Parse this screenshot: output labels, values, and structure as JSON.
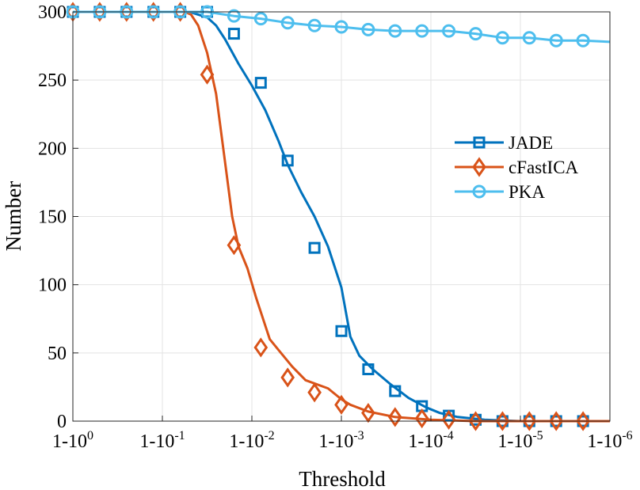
{
  "chart_data": {
    "type": "line",
    "title": "",
    "xlabel": "Threshold",
    "ylabel": "Number",
    "ylim": [
      0,
      300
    ],
    "xlim_log10_one_minus_threshold": [
      0,
      -6
    ],
    "y_ticks": [
      "0",
      "50",
      "100",
      "150",
      "200",
      "250",
      "300"
    ],
    "x_ticks": [
      {
        "base": "1-10",
        "exp": "0"
      },
      {
        "base": "1-10",
        "exp": "-1"
      },
      {
        "base": "1-10",
        "exp": "-2"
      },
      {
        "base": "1-10",
        "exp": "-3"
      },
      {
        "base": "1-10",
        "exp": "-4"
      },
      {
        "base": "1-10",
        "exp": "-5"
      },
      {
        "base": "1-10",
        "exp": "-6"
      }
    ],
    "grid": true,
    "legend_position": "center-right",
    "series": [
      {
        "name": "JADE",
        "color": "#0072BD",
        "marker": "square",
        "curve": [
          [
            0,
            300
          ],
          [
            -1.05,
            300
          ],
          [
            -1.3,
            300
          ],
          [
            -1.5,
            296
          ],
          [
            -1.6,
            290
          ],
          [
            -1.7,
            280
          ],
          [
            -1.85,
            262
          ],
          [
            -2,
            246
          ],
          [
            -2.15,
            228
          ],
          [
            -2.3,
            205
          ],
          [
            -2.4,
            188
          ],
          [
            -2.55,
            168
          ],
          [
            -2.7,
            150
          ],
          [
            -2.85,
            128
          ],
          [
            -3,
            98
          ],
          [
            -3.1,
            62
          ],
          [
            -3.2,
            48
          ],
          [
            -3.35,
            38
          ],
          [
            -3.55,
            27
          ],
          [
            -3.75,
            17
          ],
          [
            -3.95,
            10
          ],
          [
            -4.1,
            6
          ],
          [
            -4.3,
            3
          ],
          [
            -4.6,
            1
          ],
          [
            -5,
            0
          ],
          [
            -6,
            0
          ]
        ],
        "markers": [
          [
            0,
            300
          ],
          [
            -0.3,
            300
          ],
          [
            -0.6,
            300
          ],
          [
            -0.9,
            300
          ],
          [
            -1.2,
            300
          ],
          [
            -1.5,
            300
          ],
          [
            -1.8,
            284
          ],
          [
            -2.1,
            248
          ],
          [
            -2.4,
            191
          ],
          [
            -2.7,
            127
          ],
          [
            -3,
            66
          ],
          [
            -3.3,
            38
          ],
          [
            -3.6,
            22
          ],
          [
            -3.9,
            11
          ],
          [
            -4.2,
            4
          ],
          [
            -4.5,
            1
          ],
          [
            -4.8,
            0
          ],
          [
            -5.1,
            0
          ],
          [
            -5.4,
            0
          ],
          [
            -5.7,
            0
          ]
        ]
      },
      {
        "name": "cFastICA",
        "color": "#D95319",
        "marker": "diamond",
        "curve": [
          [
            0,
            300
          ],
          [
            -1.25,
            300
          ],
          [
            -1.32,
            298
          ],
          [
            -1.4,
            290
          ],
          [
            -1.5,
            270
          ],
          [
            -1.6,
            240
          ],
          [
            -1.7,
            190
          ],
          [
            -1.78,
            150
          ],
          [
            -1.85,
            128
          ],
          [
            -1.95,
            112
          ],
          [
            -2.05,
            90
          ],
          [
            -2.2,
            60
          ],
          [
            -2.3,
            52
          ],
          [
            -2.45,
            40
          ],
          [
            -2.6,
            30
          ],
          [
            -2.85,
            24
          ],
          [
            -3,
            16
          ],
          [
            -3.1,
            12
          ],
          [
            -3.3,
            7
          ],
          [
            -3.6,
            3
          ],
          [
            -4,
            1
          ],
          [
            -4.5,
            0
          ],
          [
            -6,
            0
          ]
        ],
        "markers": [
          [
            0,
            300
          ],
          [
            -0.3,
            300
          ],
          [
            -0.6,
            300
          ],
          [
            -0.9,
            300
          ],
          [
            -1.2,
            300
          ],
          [
            -1.5,
            254
          ],
          [
            -1.8,
            129
          ],
          [
            -2.1,
            54
          ],
          [
            -2.4,
            32
          ],
          [
            -2.7,
            21
          ],
          [
            -3,
            12
          ],
          [
            -3.3,
            6
          ],
          [
            -3.6,
            3
          ],
          [
            -3.9,
            2
          ],
          [
            -4.2,
            1
          ],
          [
            -4.5,
            0
          ],
          [
            -4.8,
            0
          ],
          [
            -5.1,
            0
          ],
          [
            -5.4,
            0
          ],
          [
            -5.7,
            0
          ]
        ]
      },
      {
        "name": "PKA",
        "color": "#4DBEEE",
        "marker": "circle",
        "curve": [
          [
            0,
            300
          ],
          [
            -1.5,
            300
          ],
          [
            -1.8,
            297
          ],
          [
            -2.1,
            295
          ],
          [
            -2.4,
            292
          ],
          [
            -2.7,
            290
          ],
          [
            -3,
            289
          ],
          [
            -3.3,
            287
          ],
          [
            -3.6,
            286
          ],
          [
            -3.9,
            286
          ],
          [
            -4.2,
            286
          ],
          [
            -4.5,
            284
          ],
          [
            -4.8,
            281
          ],
          [
            -5.1,
            281
          ],
          [
            -5.4,
            279
          ],
          [
            -5.7,
            279
          ],
          [
            -6,
            278
          ]
        ],
        "markers": [
          [
            0,
            300
          ],
          [
            -0.3,
            300
          ],
          [
            -0.6,
            300
          ],
          [
            -0.9,
            300
          ],
          [
            -1.2,
            300
          ],
          [
            -1.5,
            300
          ],
          [
            -1.8,
            297
          ],
          [
            -2.1,
            295
          ],
          [
            -2.4,
            292
          ],
          [
            -2.7,
            290
          ],
          [
            -3,
            289
          ],
          [
            -3.3,
            287
          ],
          [
            -3.6,
            286
          ],
          [
            -3.9,
            286
          ],
          [
            -4.2,
            286
          ],
          [
            -4.5,
            284
          ],
          [
            -4.8,
            281
          ],
          [
            -5.1,
            281
          ],
          [
            -5.4,
            279
          ],
          [
            -5.7,
            279
          ]
        ]
      }
    ]
  }
}
